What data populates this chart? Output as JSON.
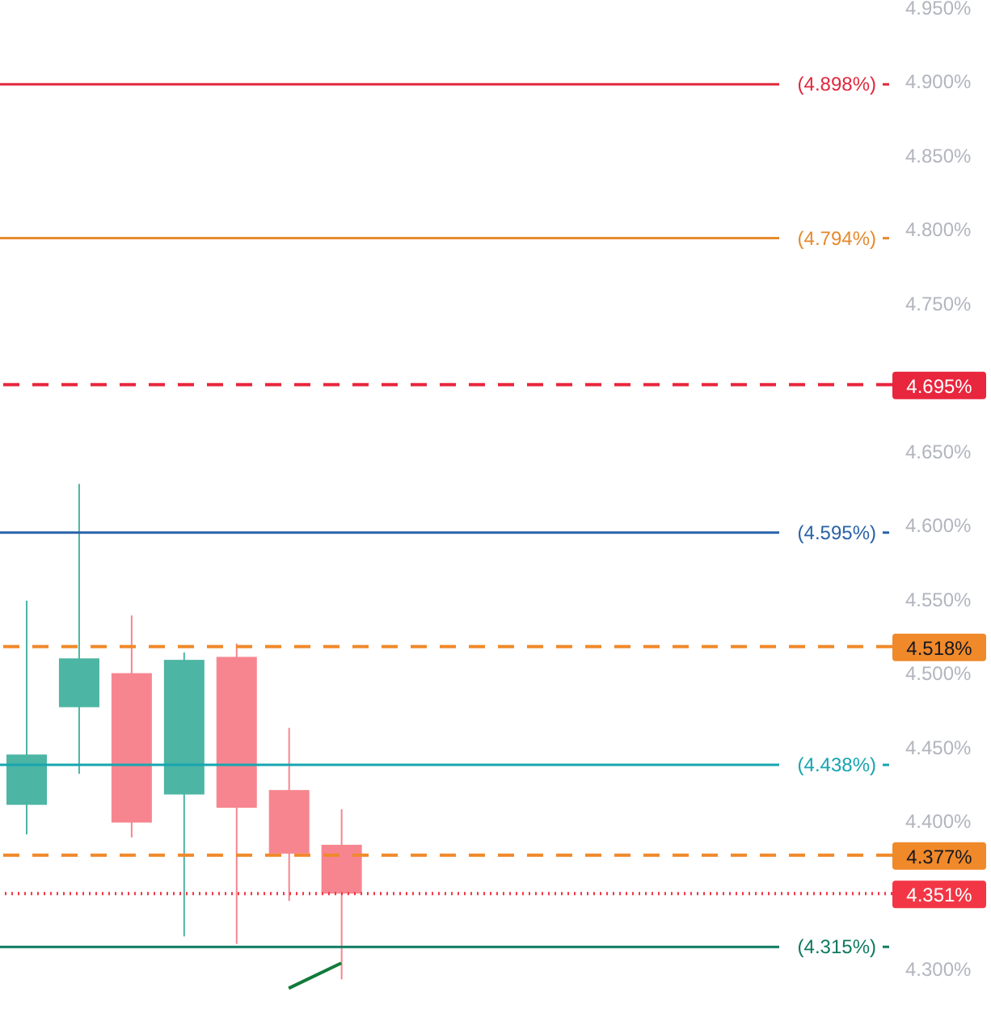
{
  "chart_data": {
    "type": "candlestick",
    "categories": [
      null,
      null,
      null,
      null,
      null,
      null,
      null,
      null,
      null,
      null,
      null,
      null,
      null,
      null,
      null,
      null,
      null
    ],
    "ohlc": [
      [
        4.411,
        4.549,
        4.391,
        4.445
      ],
      [
        4.477,
        4.628,
        4.432,
        4.51
      ],
      [
        4.5,
        4.539,
        4.389,
        4.399
      ],
      [
        4.418,
        4.514,
        4.322,
        4.509
      ],
      [
        4.511,
        4.52,
        4.317,
        4.409
      ],
      [
        4.421,
        4.463,
        4.346,
        4.378
      ],
      [
        4.384,
        4.408,
        4.293,
        4.351
      ],
      null,
      null,
      null,
      null,
      null,
      null,
      null,
      null,
      null,
      null
    ],
    "colors": [
      "#4cb5a3",
      "#4cb5a3",
      "#f7858f",
      "#4cb5a3",
      "#f7858f",
      "#f7858f",
      "#f7858f",
      null,
      null,
      null,
      null,
      null,
      null,
      null,
      null,
      null,
      null
    ],
    "series": [
      {
        "type": "line",
        "color": "#137a3a",
        "values": [
          null,
          null,
          null,
          null,
          null,
          4.287,
          4.304,
          null,
          null,
          null,
          null,
          null,
          null,
          null,
          null,
          null,
          null
        ]
      }
    ],
    "ref_lines": [
      {
        "axis": "y",
        "value": 4.898,
        "label": "(4.898%)",
        "color": "#e0283c",
        "line_style": "solid"
      },
      {
        "axis": "y",
        "value": 4.794,
        "label": "(4.794%)",
        "color": "#e68a2e",
        "line_style": "solid"
      },
      {
        "axis": "y",
        "value": 4.695,
        "label": "4.695%",
        "color": "#e8263d",
        "line_style": "dashed"
      },
      {
        "axis": "y",
        "value": 4.595,
        "label": "(4.595%)",
        "color": "#2962a8",
        "line_style": "solid"
      },
      {
        "axis": "y",
        "value": 4.518,
        "label": "4.518%",
        "color": "#f0892a",
        "line_style": "dashed"
      },
      {
        "axis": "y",
        "value": 4.438,
        "label": "(4.438%)",
        "color": "#17a5b0",
        "line_style": "solid"
      },
      {
        "axis": "y",
        "value": 4.377,
        "label": "4.377%",
        "color": "#f0892a",
        "line_style": "dashed"
      },
      {
        "axis": "y",
        "value": 4.351,
        "label": "4.351%",
        "color": "#f23645",
        "line_style": "dotted"
      },
      {
        "axis": "y",
        "value": 4.315,
        "label": "(4.315%)",
        "color": "#0d7a5f",
        "line_style": "solid"
      }
    ],
    "ylim": [
      4.273,
      4.955
    ],
    "yticks": [
      {
        "value": 4.3,
        "label": "4.300%"
      },
      {
        "value": 4.4,
        "label": "4.400%"
      },
      {
        "value": 4.45,
        "label": "4.450%"
      },
      {
        "value": 4.5,
        "label": "4.500%"
      },
      {
        "value": 4.55,
        "label": "4.550%"
      },
      {
        "value": 4.6,
        "label": "4.600%"
      },
      {
        "value": 4.65,
        "label": "4.650%"
      },
      {
        "value": 4.75,
        "label": "4.750%"
      },
      {
        "value": 4.8,
        "label": "4.800%"
      },
      {
        "value": 4.85,
        "label": "4.850%"
      },
      {
        "value": 4.9,
        "label": "4.900%"
      },
      {
        "value": 4.95,
        "label": "4.950%"
      }
    ],
    "tick_labels": "y"
  }
}
